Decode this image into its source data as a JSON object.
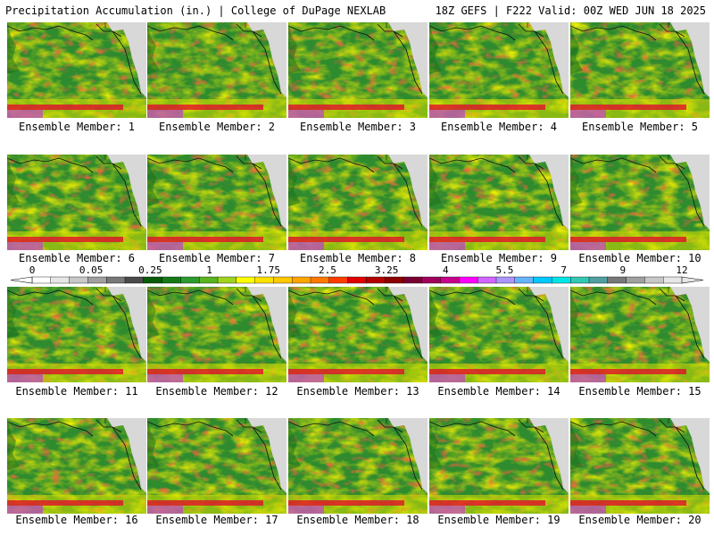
{
  "header": {
    "left": "Precipitation Accumulation (in.) | College of DuPage NEXLAB",
    "right": "18Z GEFS | F222 Valid: 00Z WED JUN 18 2025"
  },
  "members": [
    "Ensemble Member: 1",
    "Ensemble Member: 2",
    "Ensemble Member: 3",
    "Ensemble Member: 4",
    "Ensemble Member: 5",
    "Ensemble Member: 6",
    "Ensemble Member: 7",
    "Ensemble Member: 8",
    "Ensemble Member: 9",
    "Ensemble Member: 10",
    "Ensemble Member: 11",
    "Ensemble Member: 12",
    "Ensemble Member: 13",
    "Ensemble Member: 14",
    "Ensemble Member: 15",
    "Ensemble Member: 16",
    "Ensemble Member: 17",
    "Ensemble Member: 18",
    "Ensemble Member: 19",
    "Ensemble Member: 20"
  ],
  "colorbar": {
    "ticks": [
      "0",
      "0.05",
      "0.25",
      "1",
      "1.75",
      "2.5",
      "3.25",
      "4",
      "5.5",
      "7",
      "9",
      "12"
    ],
    "colors": [
      "#ffffff",
      "#e6e6e6",
      "#c8c8c8",
      "#a0a0a0",
      "#787878",
      "#4a4a4a",
      "#0a5a0a",
      "#157a15",
      "#2d9a2d",
      "#5ab41e",
      "#a0d21e",
      "#ffff00",
      "#ffe100",
      "#ffc800",
      "#ffa500",
      "#ff7800",
      "#ff3c00",
      "#e10000",
      "#b40000",
      "#8c0000",
      "#780032",
      "#a0005a",
      "#c8008c",
      "#ff00ff",
      "#d264ff",
      "#aa96ff",
      "#64b4ff",
      "#00c8ff",
      "#00e6e6",
      "#32c8b4",
      "#50a0a0",
      "#787878",
      "#a0a0a0",
      "#c8c8c8",
      "#e6e6e6"
    ]
  }
}
